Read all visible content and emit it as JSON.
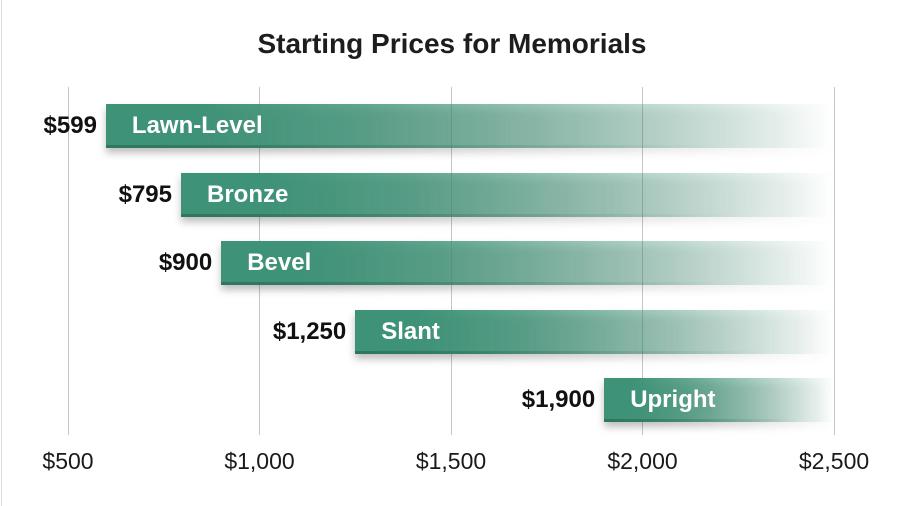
{
  "chart_data": {
    "type": "bar",
    "orientation": "horizontal",
    "title": "Starting Prices for Memorials",
    "categories": [
      "Lawn-Level",
      "Bronze",
      "Bevel",
      "Slant",
      "Upright"
    ],
    "values": [
      599,
      795,
      900,
      1250,
      1900
    ],
    "value_labels": [
      "$599",
      "$795",
      "$900",
      "$1,250",
      "$1,900"
    ],
    "x_ticks": [
      500,
      1000,
      1500,
      2000,
      2500
    ],
    "x_tick_labels": [
      "$500",
      "$1,000",
      "$1,500",
      "$2,000",
      "$2,500"
    ],
    "xlim": [
      500,
      2500
    ],
    "grid": "vertical-gridlines",
    "legend": "none",
    "bar_style": "solid green at value, fading to white toward right edge at $2,500",
    "colors": {
      "bar_green": "#3E9277",
      "bar_bottom_edge": "#1d5c47",
      "gridline": "#c6c6c6",
      "title_text": "#1d1d1f",
      "axis_text": "#1a1a1a",
      "bar_label_text": "#ffffff",
      "background": "#ffffff"
    }
  }
}
